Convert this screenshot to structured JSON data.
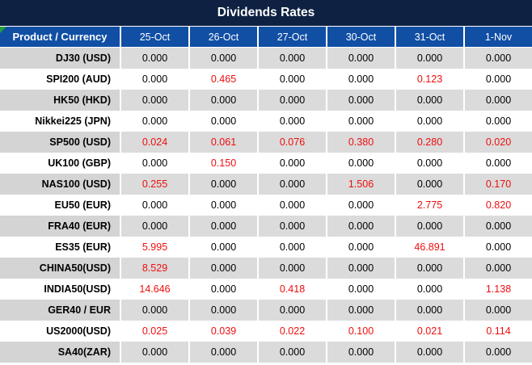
{
  "title": "Dividends Rates",
  "colors": {
    "title_bg": "#0E2142",
    "header_bg": "#114FA5",
    "row_alt_product": "#D4D4D4",
    "row_alt_value": "#DBDBDB",
    "row_white": "#FFFFFF",
    "red": "#EE0E0E",
    "black": "#000000",
    "marker_green": "#21A038"
  },
  "chart_data": {
    "type": "table",
    "title": "Dividends Rates",
    "columns": [
      "Product / Currency",
      "25-Oct",
      "26-Oct",
      "27-Oct",
      "30-Oct",
      "31-Oct",
      "1-Nov"
    ],
    "rows": [
      {
        "product": "DJ30 (USD)",
        "values": [
          "0.000",
          "0.000",
          "0.000",
          "0.000",
          "0.000",
          "0.000"
        ],
        "red": [
          0,
          0,
          0,
          0,
          0,
          0
        ]
      },
      {
        "product": "SPI200 (AUD)",
        "values": [
          "0.000",
          "0.465",
          "0.000",
          "0.000",
          "0.123",
          "0.000"
        ],
        "red": [
          0,
          1,
          0,
          0,
          1,
          0
        ]
      },
      {
        "product": "HK50 (HKD)",
        "values": [
          "0.000",
          "0.000",
          "0.000",
          "0.000",
          "0.000",
          "0.000"
        ],
        "red": [
          0,
          0,
          0,
          0,
          0,
          0
        ]
      },
      {
        "product": "Nikkei225 (JPN)",
        "values": [
          "0.000",
          "0.000",
          "0.000",
          "0.000",
          "0.000",
          "0.000"
        ],
        "red": [
          0,
          0,
          0,
          0,
          0,
          0
        ]
      },
      {
        "product": "SP500 (USD)",
        "values": [
          "0.024",
          "0.061",
          "0.076",
          "0.380",
          "0.280",
          "0.020"
        ],
        "red": [
          1,
          1,
          1,
          1,
          1,
          1
        ]
      },
      {
        "product": "UK100 (GBP)",
        "values": [
          "0.000",
          "0.150",
          "0.000",
          "0.000",
          "0.000",
          "0.000"
        ],
        "red": [
          0,
          1,
          0,
          0,
          0,
          0
        ]
      },
      {
        "product": "NAS100 (USD)",
        "values": [
          "0.255",
          "0.000",
          "0.000",
          "1.506",
          "0.000",
          "0.170"
        ],
        "red": [
          1,
          0,
          0,
          1,
          0,
          1
        ]
      },
      {
        "product": "EU50 (EUR)",
        "values": [
          "0.000",
          "0.000",
          "0.000",
          "0.000",
          "2.775",
          "0.820"
        ],
        "red": [
          0,
          0,
          0,
          0,
          1,
          1
        ]
      },
      {
        "product": "FRA40 (EUR)",
        "values": [
          "0.000",
          "0.000",
          "0.000",
          "0.000",
          "0.000",
          "0.000"
        ],
        "red": [
          0,
          0,
          0,
          0,
          0,
          0
        ]
      },
      {
        "product": "ES35 (EUR)",
        "values": [
          "5.995",
          "0.000",
          "0.000",
          "0.000",
          "46.891",
          "0.000"
        ],
        "red": [
          1,
          0,
          0,
          0,
          1,
          0
        ]
      },
      {
        "product": "CHINA50(USD)",
        "values": [
          "8.529",
          "0.000",
          "0.000",
          "0.000",
          "0.000",
          "0.000"
        ],
        "red": [
          1,
          0,
          0,
          0,
          0,
          0
        ]
      },
      {
        "product": "INDIA50(USD)",
        "values": [
          "14.646",
          "0.000",
          "0.418",
          "0.000",
          "0.000",
          "1.138"
        ],
        "red": [
          1,
          0,
          1,
          0,
          0,
          1
        ]
      },
      {
        "product": "GER40 / EUR",
        "values": [
          "0.000",
          "0.000",
          "0.000",
          "0.000",
          "0.000",
          "0.000"
        ],
        "red": [
          0,
          0,
          0,
          0,
          0,
          0
        ]
      },
      {
        "product": "US2000(USD)",
        "values": [
          "0.025",
          "0.039",
          "0.022",
          "0.100",
          "0.021",
          "0.114"
        ],
        "red": [
          1,
          1,
          1,
          1,
          1,
          1
        ]
      },
      {
        "product": "SA40(ZAR)",
        "values": [
          "0.000",
          "0.000",
          "0.000",
          "0.000",
          "0.000",
          "0.000"
        ],
        "red": [
          0,
          0,
          0,
          0,
          0,
          0
        ]
      }
    ]
  }
}
